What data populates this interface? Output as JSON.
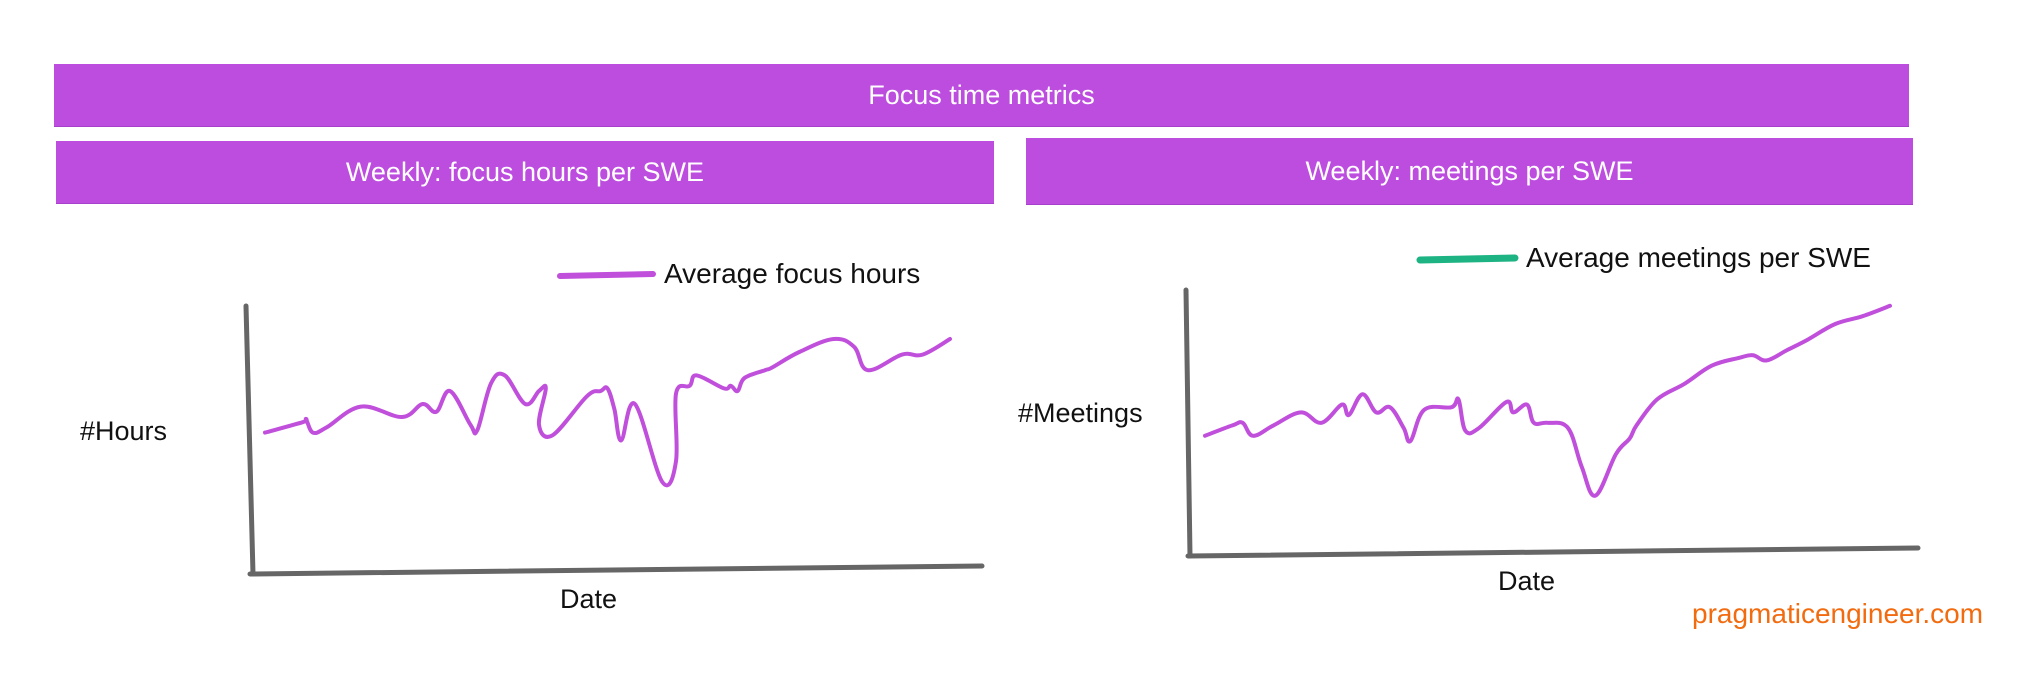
{
  "header": {
    "title": "Focus time metrics"
  },
  "panels": {
    "left_title": "Weekly: focus hours per SWE",
    "right_title": "Weekly: meetings per SWE"
  },
  "watermark": "pragmaticengineer.com",
  "colors": {
    "banner": "#bd4ddf",
    "series_line": "#c04fdb",
    "legend_meetings": "#1db382",
    "axis": "#666666",
    "watermark": "#f26b0f"
  },
  "chart_data": [
    {
      "type": "line",
      "title": "Weekly: focus hours per SWE",
      "xlabel": "Date",
      "ylabel": "#Hours",
      "grid": false,
      "legend_position": "top-right",
      "ylim": [
        0,
        100
      ],
      "series": [
        {
          "name": "Average focus hours",
          "legend_color": "#c04fdb",
          "x": [
            0,
            0.055,
            0.06,
            0.07,
            0.09,
            0.14,
            0.2,
            0.23,
            0.25,
            0.27,
            0.3,
            0.31,
            0.33,
            0.35,
            0.38,
            0.4,
            0.41,
            0.4,
            0.42,
            0.47,
            0.49,
            0.5,
            0.51,
            0.52,
            0.54,
            0.58,
            0.6,
            0.6,
            0.62,
            0.63,
            0.67,
            0.68,
            0.69,
            0.7,
            0.73,
            0.74,
            0.78,
            0.83,
            0.86,
            0.88,
            0.93,
            0.96,
            1
          ],
          "y": [
            49,
            53,
            54,
            49,
            51,
            59,
            55,
            60,
            57,
            65,
            52,
            50,
            68,
            71,
            60,
            65,
            66,
            52,
            48,
            63,
            65,
            66,
            58,
            46,
            60,
            30,
            38,
            64,
            67,
            71,
            66,
            67,
            65,
            70,
            73,
            74,
            80,
            85,
            82,
            73,
            79,
            79,
            85
          ]
        }
      ]
    },
    {
      "type": "line",
      "title": "Weekly: meetings per SWE",
      "xlabel": "Date",
      "ylabel": "#Meetings",
      "grid": false,
      "legend_position": "top-right",
      "ylim": [
        0,
        100
      ],
      "series": [
        {
          "name": "Average meetings per SWE",
          "legend_color": "#1db382",
          "x": [
            0,
            0.04,
            0.055,
            0.07,
            0.1,
            0.14,
            0.17,
            0.2,
            0.21,
            0.23,
            0.25,
            0.27,
            0.29,
            0.3,
            0.32,
            0.36,
            0.37,
            0.38,
            0.4,
            0.44,
            0.45,
            0.47,
            0.48,
            0.5,
            0.53,
            0.55,
            0.57,
            0.6,
            0.62,
            0.63,
            0.66,
            0.7,
            0.74,
            0.78,
            0.8,
            0.82,
            0.85,
            0.88,
            0.92,
            0.96,
            1
          ],
          "y": [
            42,
            46,
            47,
            42,
            46,
            51,
            47,
            54,
            50,
            58,
            51,
            53,
            45,
            40,
            52,
            53,
            56,
            44,
            45,
            55,
            51,
            54,
            47,
            47,
            45,
            30,
            19,
            35,
            41,
            46,
            56,
            62,
            69,
            72,
            73,
            71,
            75,
            79,
            85,
            88,
            92
          ]
        }
      ]
    }
  ]
}
